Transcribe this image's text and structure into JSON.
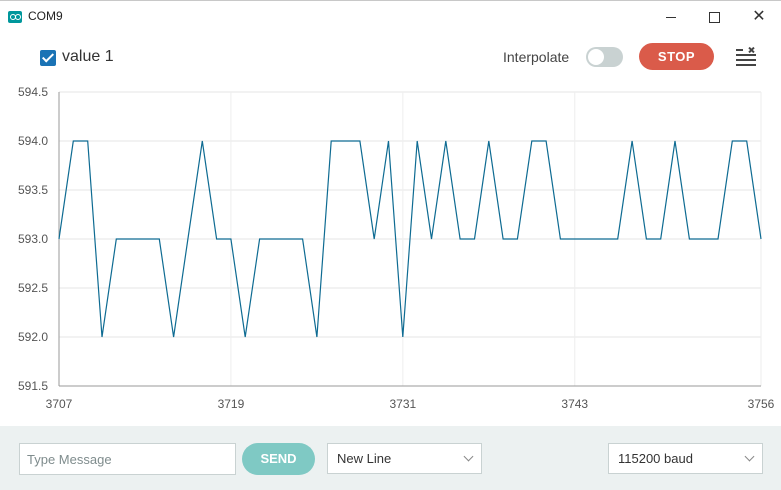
{
  "window": {
    "title": "COM9",
    "controls": [
      "minimize",
      "maximize",
      "close"
    ],
    "close_glyph": "✕"
  },
  "toolbar": {
    "series_label": "value 1",
    "series_checked": true,
    "interpolate_label": "Interpolate",
    "interpolate_on": false,
    "stop_label": "STOP",
    "accent_color": "#da5b4a"
  },
  "chart_data": {
    "type": "line",
    "title": "",
    "xlabel": "",
    "ylabel": "",
    "ylim": [
      591.5,
      594.5
    ],
    "xlim": [
      3707,
      3756
    ],
    "y_ticks": [
      "594.5",
      "594.0",
      "593.5",
      "593.0",
      "592.5",
      "592.0",
      "591.5"
    ],
    "x_ticks": [
      "3707",
      "3719",
      "3731",
      "3743",
      "3756"
    ],
    "grid": true,
    "line_color": "#0e6b92",
    "series": [
      {
        "name": "value 1",
        "x": [
          3707,
          3708,
          3709,
          3710,
          3711,
          3712,
          3713,
          3714,
          3715,
          3716,
          3717,
          3718,
          3719,
          3720,
          3721,
          3722,
          3723,
          3724,
          3725,
          3726,
          3727,
          3728,
          3729,
          3730,
          3731,
          3732,
          3733,
          3734,
          3735,
          3736,
          3737,
          3738,
          3739,
          3740,
          3741,
          3742,
          3743,
          3744,
          3745,
          3746,
          3747,
          3748,
          3749,
          3750,
          3751,
          3752,
          3753,
          3754,
          3755,
          3756
        ],
        "values": [
          593,
          594,
          594,
          592,
          593,
          593,
          593,
          593,
          592,
          593,
          594,
          593,
          593,
          592,
          593,
          593,
          593,
          593,
          592,
          594,
          594,
          594,
          593,
          594,
          592,
          594,
          593,
          594,
          593,
          593,
          594,
          593,
          593,
          594,
          594,
          593,
          593,
          593,
          593,
          593,
          594,
          593,
          593,
          594,
          593,
          593,
          593,
          594,
          594,
          593
        ]
      }
    ]
  },
  "footer": {
    "message_placeholder": "Type Message",
    "send_label": "SEND",
    "line_ending": "New Line",
    "baud_rate": "115200 baud"
  }
}
